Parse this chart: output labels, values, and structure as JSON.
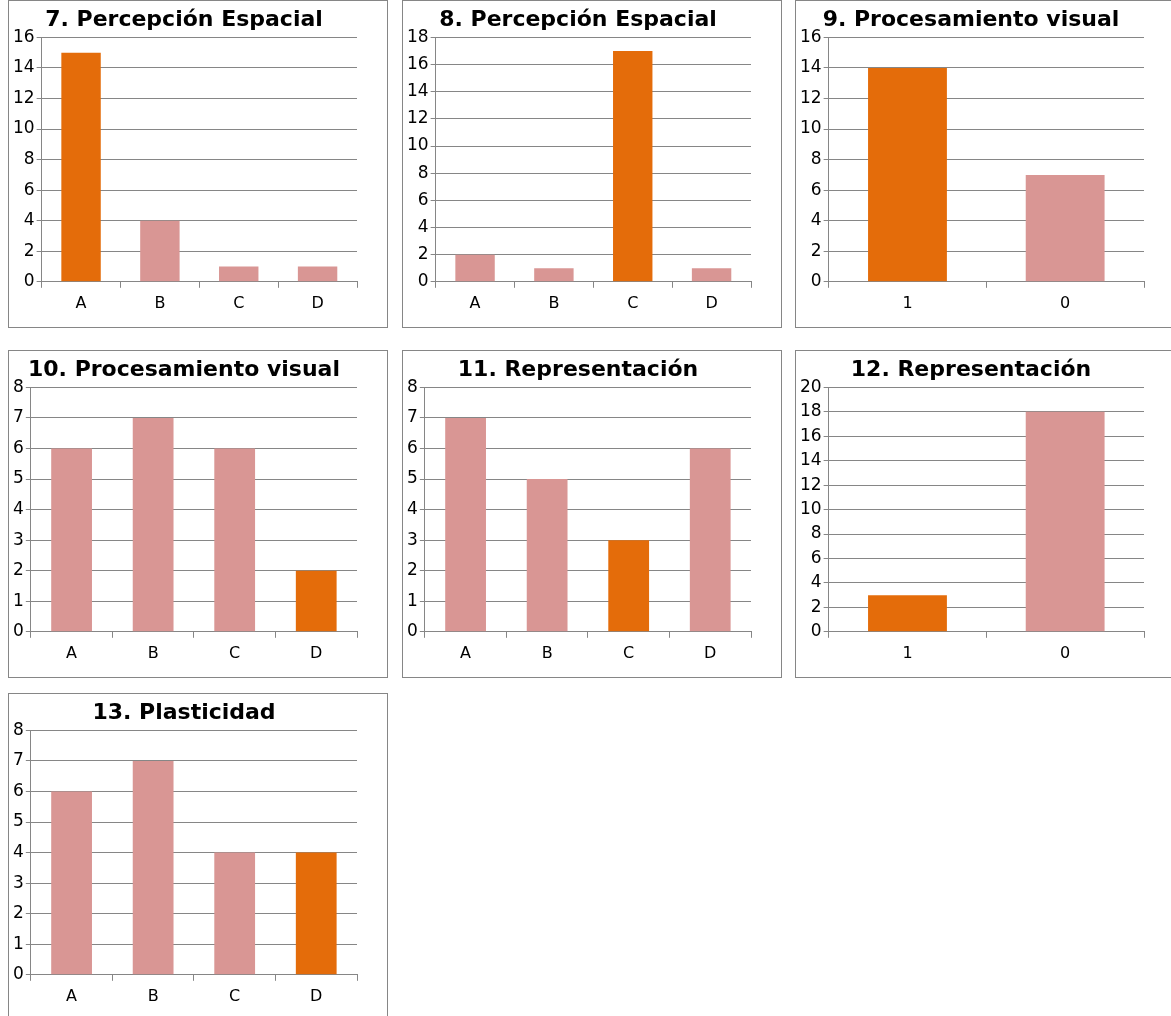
{
  "chart_data": [
    {
      "type": "bar",
      "title": "7. Percepción Espacial",
      "categories": [
        "A",
        "B",
        "C",
        "D"
      ],
      "values": [
        15,
        4,
        1,
        1
      ],
      "colors": [
        "#e46c0a",
        "#d99694",
        "#d99694",
        "#d99694"
      ],
      "ylim": [
        0,
        16
      ],
      "yticks": [
        0,
        2,
        4,
        6,
        8,
        10,
        12,
        14,
        16
      ],
      "grid": "y"
    },
    {
      "type": "bar",
      "title": "8. Percepción Espacial",
      "categories": [
        "A",
        "B",
        "C",
        "D"
      ],
      "values": [
        2,
        1,
        17,
        1
      ],
      "colors": [
        "#d99694",
        "#d99694",
        "#e46c0a",
        "#d99694"
      ],
      "ylim": [
        0,
        18
      ],
      "yticks": [
        0,
        2,
        4,
        6,
        8,
        10,
        12,
        14,
        16,
        18
      ],
      "grid": "y"
    },
    {
      "type": "bar",
      "title": "9. Procesamiento visual",
      "categories": [
        "1",
        "0"
      ],
      "values": [
        14,
        7
      ],
      "colors": [
        "#e46c0a",
        "#d99694"
      ],
      "ylim": [
        0,
        16
      ],
      "yticks": [
        0,
        2,
        4,
        6,
        8,
        10,
        12,
        14,
        16
      ],
      "grid": "y"
    },
    {
      "type": "bar",
      "title": "10. Procesamiento visual",
      "categories": [
        "A",
        "B",
        "C",
        "D"
      ],
      "values": [
        6,
        7,
        6,
        2
      ],
      "colors": [
        "#d99694",
        "#d99694",
        "#d99694",
        "#e46c0a"
      ],
      "ylim": [
        0,
        8
      ],
      "yticks": [
        0,
        1,
        2,
        3,
        4,
        5,
        6,
        7,
        8
      ],
      "grid": "y"
    },
    {
      "type": "bar",
      "title": "11. Representación",
      "categories": [
        "A",
        "B",
        "C",
        "D"
      ],
      "values": [
        7,
        5,
        3,
        6
      ],
      "colors": [
        "#d99694",
        "#d99694",
        "#e46c0a",
        "#d99694"
      ],
      "ylim": [
        0,
        8
      ],
      "yticks": [
        0,
        1,
        2,
        3,
        4,
        5,
        6,
        7,
        8
      ],
      "grid": "y"
    },
    {
      "type": "bar",
      "title": "12. Representación",
      "categories": [
        "1",
        "0"
      ],
      "values": [
        3,
        18
      ],
      "colors": [
        "#e46c0a",
        "#d99694"
      ],
      "ylim": [
        0,
        20
      ],
      "yticks": [
        0,
        2,
        4,
        6,
        8,
        10,
        12,
        14,
        16,
        18,
        20
      ],
      "grid": "y"
    },
    {
      "type": "bar",
      "title": "13. Plasticidad",
      "categories": [
        "A",
        "B",
        "C",
        "D"
      ],
      "values": [
        6,
        7,
        4,
        4
      ],
      "colors": [
        "#d99694",
        "#d99694",
        "#d99694",
        "#e46c0a"
      ],
      "ylim": [
        0,
        8
      ],
      "yticks": [
        0,
        1,
        2,
        3,
        4,
        5,
        6,
        7,
        8
      ],
      "grid": "y"
    }
  ]
}
